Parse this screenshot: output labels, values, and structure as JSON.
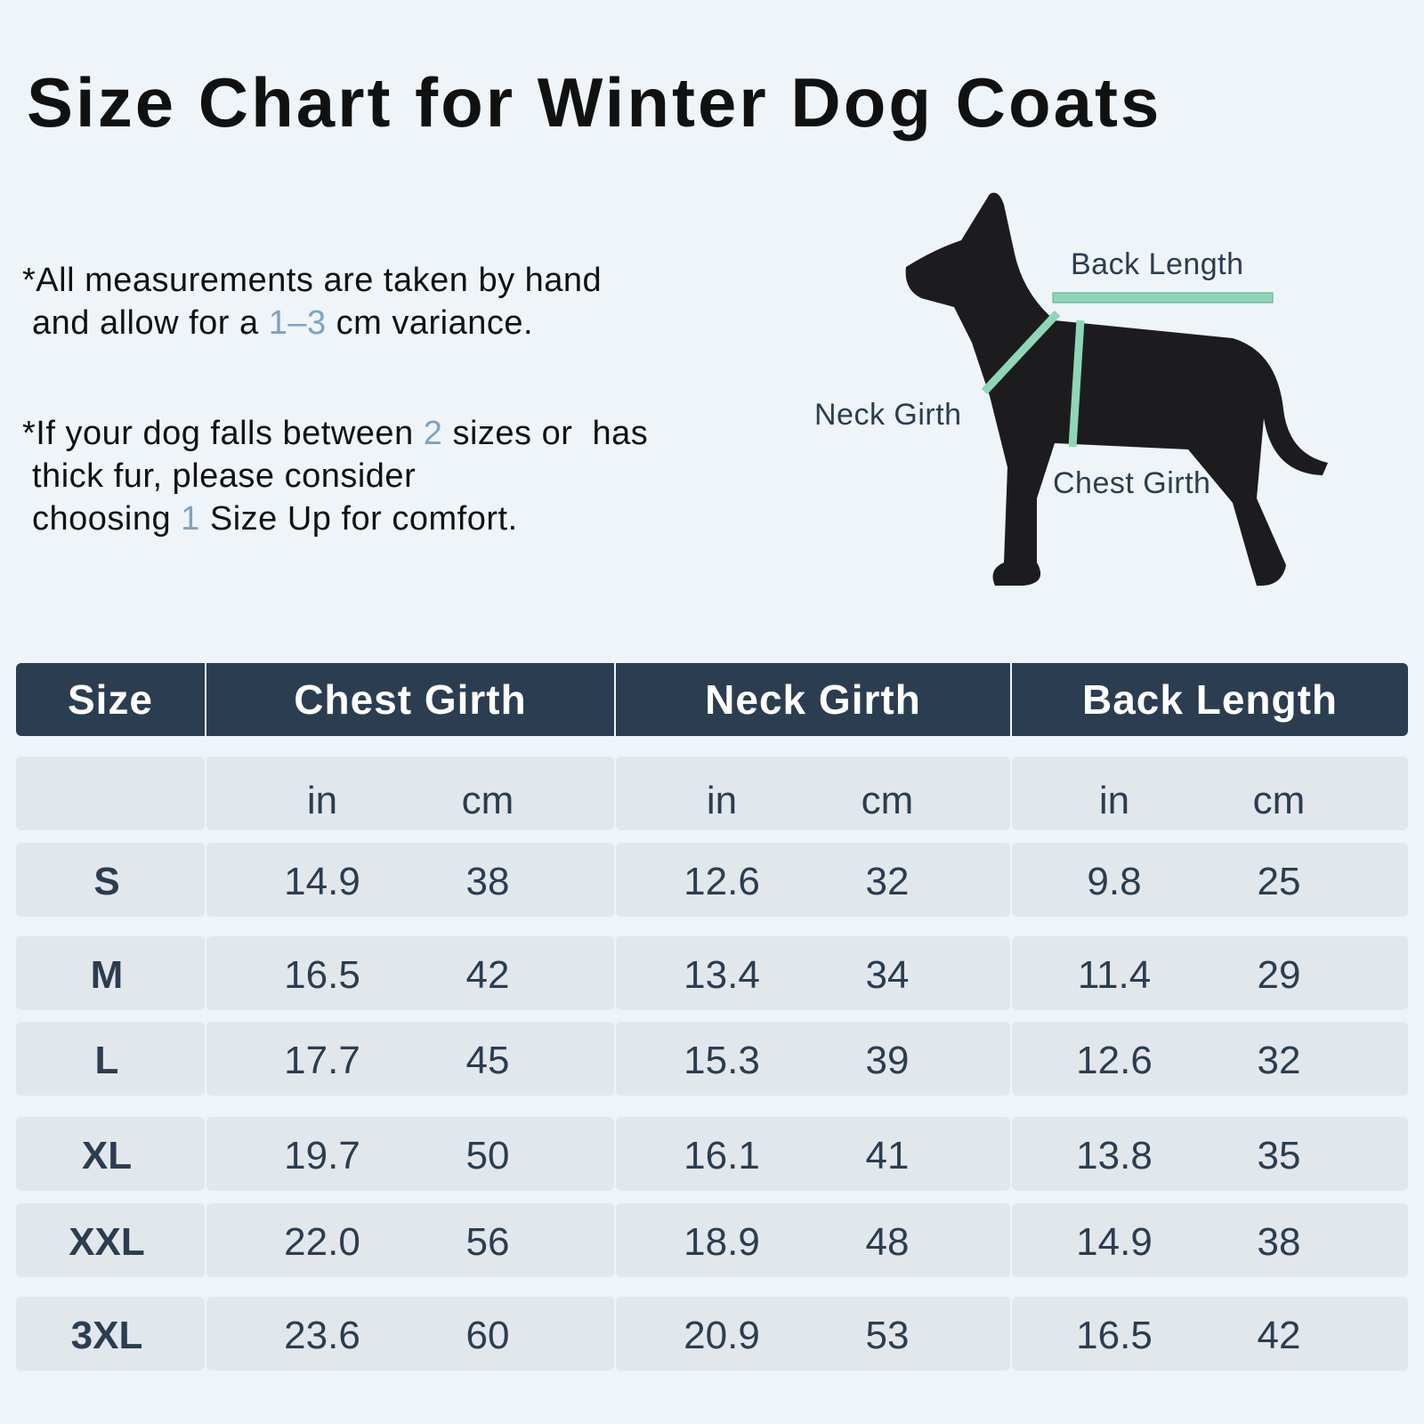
{
  "title": "Size Chart for Winter Dog Coats",
  "notes": [
    [
      "*All measurements are taken by hand",
      "and allow for a ",
      "1–3",
      " cm variance."
    ],
    [
      "*If your dog falls between ",
      "2",
      " sizes or  has",
      "thick fur, please consider",
      "choosing ",
      "1",
      " Size Up for comfort."
    ]
  ],
  "diagram": {
    "back_length": "Back Length",
    "neck_girth": "Neck Girth",
    "chest_girth": "Chest Girth"
  },
  "table": {
    "header": [
      "Size",
      "Chest Girth",
      "Neck Girth",
      "Back Length"
    ],
    "units": [
      "in",
      "cm",
      "in",
      "cm",
      "in",
      "cm"
    ],
    "rows": [
      [
        "S",
        "14.9",
        "38",
        "12.6",
        "32",
        "9.8",
        "25"
      ],
      [
        "M",
        "16.5",
        "42",
        "13.4",
        "34",
        "11.4",
        "29"
      ],
      [
        "L",
        "17.7",
        "45",
        "15.3",
        "39",
        "12.6",
        "32"
      ],
      [
        "XL",
        "19.7",
        "50",
        "16.1",
        "41",
        "13.8",
        "35"
      ],
      [
        "XXL",
        "22.0",
        "56",
        "18.9",
        "48",
        "14.9",
        "38"
      ],
      [
        "3XL",
        "23.6",
        "60",
        "20.9",
        "53",
        "16.5",
        "42"
      ]
    ]
  }
}
